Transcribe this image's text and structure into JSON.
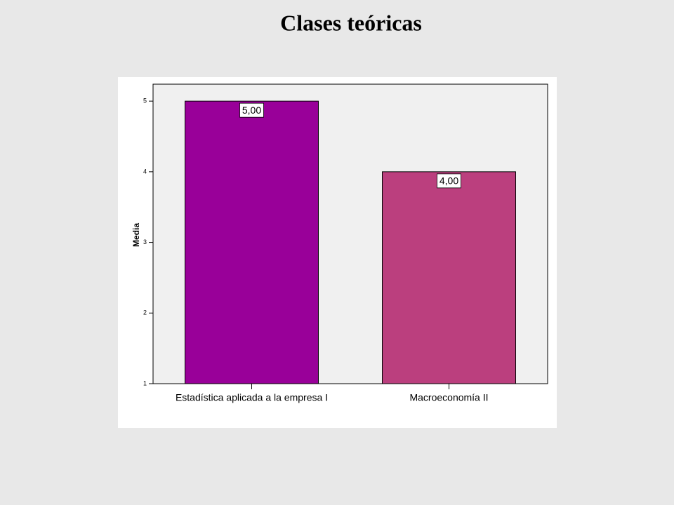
{
  "chart_data": {
    "type": "bar",
    "title": "Clases teóricas",
    "y_label": "Media",
    "categories": [
      "Estadística aplicada a la empresa I",
      "Macroeconomía II"
    ],
    "values": [
      5,
      4
    ],
    "value_labels": [
      "5,00",
      "4,00"
    ],
    "colors": [
      "#990099",
      "#bb3f7e"
    ],
    "ylim": [
      1,
      5.24
    ],
    "yticks": [
      1,
      2,
      3,
      4,
      5
    ],
    "grid": false
  }
}
